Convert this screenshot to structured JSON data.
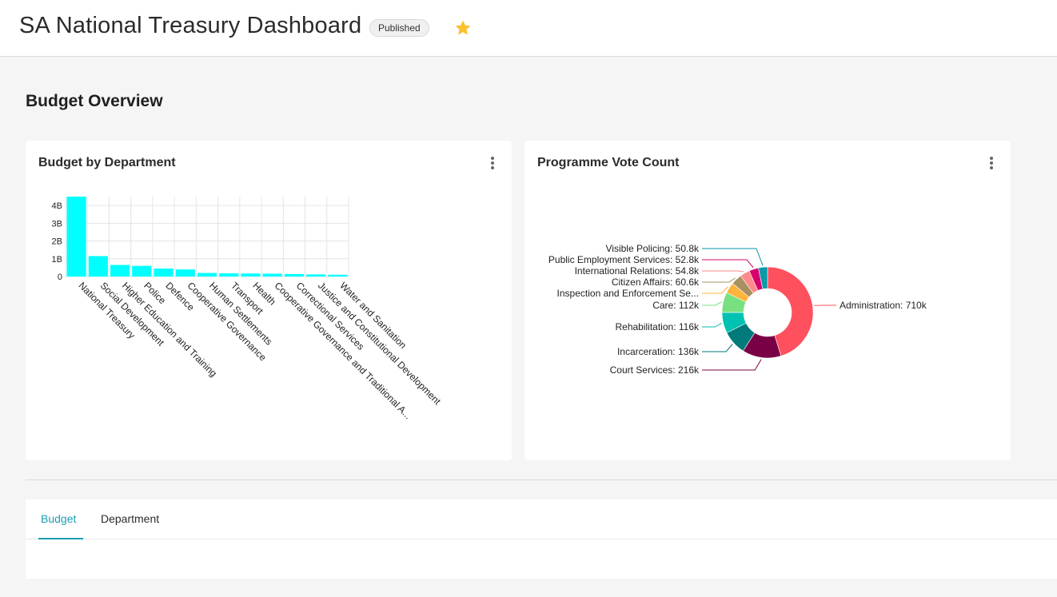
{
  "header": {
    "title": "SA National Treasury Dashboard",
    "status_badge": "Published",
    "favorite_icon": "star-icon",
    "favorite_color": "#fbc02d"
  },
  "section": {
    "title": "Budget Overview"
  },
  "cards": {
    "budget_by_department": {
      "title": "Budget by Department",
      "menu_icon": "kebab-menu-icon"
    },
    "programme_vote_count": {
      "title": "Programme Vote Count",
      "menu_icon": "kebab-menu-icon"
    }
  },
  "chart_data": [
    {
      "type": "bar",
      "title": "Budget by Department",
      "categories": [
        "National Treasury",
        "Social Development",
        "Higher Education and Training",
        "Police",
        "Defence",
        "Cooperative Governance",
        "Human Settlements",
        "Transport",
        "Health",
        "Cooperative Governance and Traditional A...",
        "Correctional Services",
        "Justice and Constitutional Development",
        "Water and Sanitation"
      ],
      "values": [
        4500000000,
        1150000000,
        650000000,
        600000000,
        450000000,
        400000000,
        200000000,
        180000000,
        170000000,
        160000000,
        140000000,
        120000000,
        100000000
      ],
      "y_ticks": [
        "0",
        "1B",
        "2B",
        "3B",
        "4B"
      ],
      "ylim": [
        0,
        4500000000
      ],
      "grid": true,
      "bar_color": "#00ffff"
    },
    {
      "type": "pie",
      "title": "Programme Vote Count",
      "donut": true,
      "slices": [
        {
          "label": "Administration",
          "value": 710000,
          "display": "710k",
          "color": "#ff505e"
        },
        {
          "label": "Court Services",
          "value": 216000,
          "display": "216k",
          "color": "#7a0045"
        },
        {
          "label": "Incarceration",
          "value": 136000,
          "display": "136k",
          "color": "#007a7a"
        },
        {
          "label": "Rehabilitation",
          "value": 116000,
          "display": "116k",
          "color": "#00c2b2"
        },
        {
          "label": "Care",
          "value": 112000,
          "display": "112k",
          "color": "#78e080"
        },
        {
          "label": "Inspection and Enforcement Se...",
          "value": 60600,
          "display": "",
          "color": "#ffb43c"
        },
        {
          "label": "Citizen Affairs",
          "value": 60600,
          "display": "60.6k",
          "color": "#a89060"
        },
        {
          "label": "International Relations",
          "value": 54800,
          "display": "54.8k",
          "color": "#ff8a8a"
        },
        {
          "label": "Public Employment Services",
          "value": 52800,
          "display": "52.8k",
          "color": "#d6006e"
        },
        {
          "label": "Visible Policing",
          "value": 50800,
          "display": "50.8k",
          "color": "#0a9aa8"
        }
      ]
    }
  ],
  "tabs": [
    {
      "label": "Budget",
      "active": true
    },
    {
      "label": "Department",
      "active": false
    }
  ]
}
